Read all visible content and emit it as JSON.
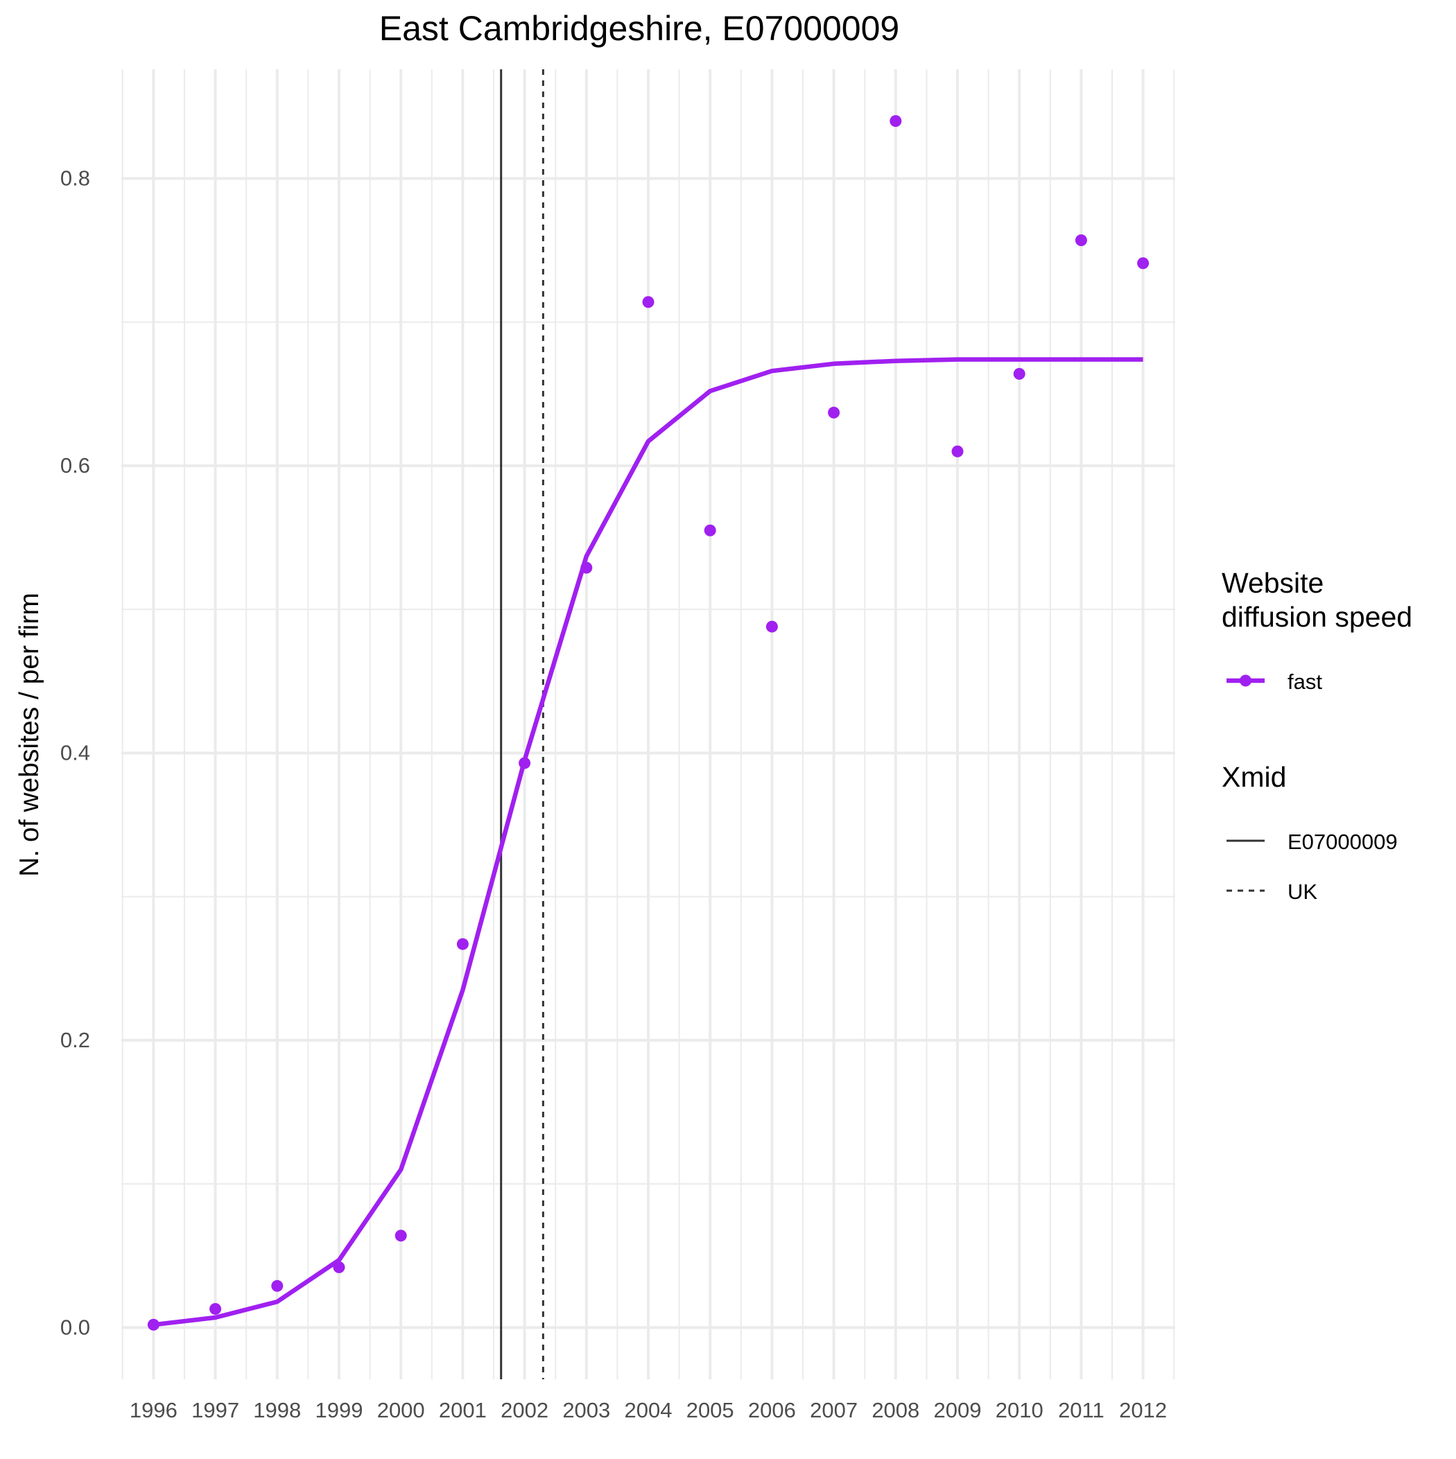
{
  "chart_data": {
    "type": "line",
    "title": "East Cambridgeshire, E07000009",
    "xlabel": "",
    "ylabel": "N. of websites / per firm",
    "x": [
      1996,
      1997,
      1998,
      1999,
      2000,
      2001,
      2002,
      2003,
      2004,
      2005,
      2006,
      2007,
      2008,
      2009,
      2010,
      2011,
      2012
    ],
    "x_tick_labels": [
      "1996",
      "1997",
      "1998",
      "1999",
      "2000",
      "2001",
      "2002",
      "2003",
      "2004",
      "2005",
      "2006",
      "2007",
      "2008",
      "2009",
      "2010",
      "2011",
      "2012"
    ],
    "xlim": [
      1995.48,
      2012.52
    ],
    "ylim": [
      -0.036,
      0.876
    ],
    "y_ticks": [
      0.0,
      0.2,
      0.4,
      0.6,
      0.8
    ],
    "y_tick_labels": [
      "0.0",
      "0.2",
      "0.4",
      "0.6",
      "0.8"
    ],
    "grid": true,
    "series": [
      {
        "name": "fast",
        "kind": "line",
        "color": "#A020F0",
        "y": [
          0.002,
          0.007,
          0.018,
          0.047,
          0.11,
          0.235,
          0.395,
          0.537,
          0.617,
          0.652,
          0.666,
          0.671,
          0.673,
          0.674,
          0.674,
          0.674,
          0.674
        ]
      },
      {
        "name": "fast",
        "kind": "points",
        "color": "#A020F0",
        "y": [
          0.002,
          0.013,
          0.029,
          0.042,
          0.064,
          0.267,
          0.393,
          0.529,
          0.714,
          0.555,
          0.488,
          0.637,
          0.84,
          0.61,
          0.664,
          0.757,
          0.741
        ]
      }
    ],
    "vlines": [
      {
        "name": "E07000009",
        "x": 2001.62,
        "style": "solid",
        "color": "#333333"
      },
      {
        "name": "UK",
        "x": 2002.3,
        "style": "dashed",
        "color": "#333333"
      }
    ],
    "legend": {
      "position": "right",
      "groups": [
        {
          "title_lines": [
            "Website",
            "diffusion speed"
          ],
          "entries": [
            {
              "label": "fast",
              "kind": "line-point",
              "color": "#A020F0"
            }
          ]
        },
        {
          "title_lines": [
            "Xmid"
          ],
          "entries": [
            {
              "label": "E07000009",
              "kind": "solid",
              "color": "#333333"
            },
            {
              "label": "UK",
              "kind": "dashed",
              "color": "#333333"
            }
          ]
        }
      ]
    }
  }
}
